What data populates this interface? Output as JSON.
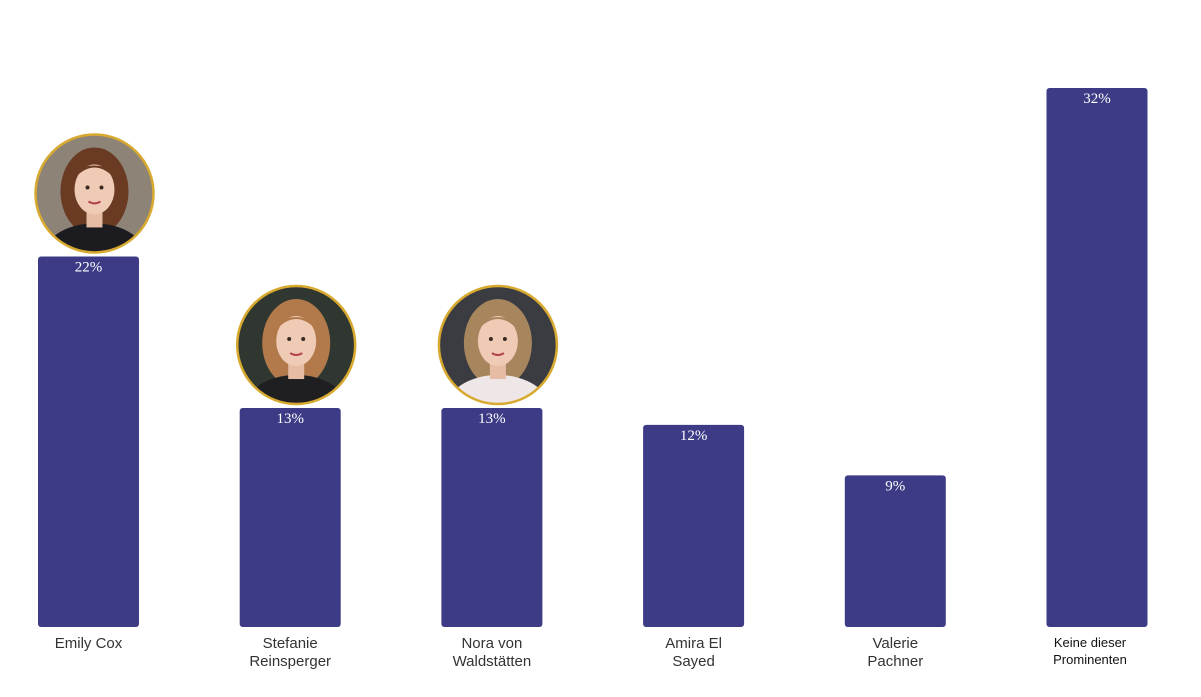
{
  "chart_data": {
    "type": "bar",
    "categories": [
      "Emily Cox",
      "Stefanie Reinsperger",
      "Nora von Waldstätten",
      "Amira El Sayed",
      "Valerie Pachner",
      "Keine dieser Prominenten"
    ],
    "category_lines": [
      [
        "Emily Cox"
      ],
      [
        "Stefanie",
        "Reinsperger"
      ],
      [
        "Nora von",
        "Waldstätten"
      ],
      [
        "Amira El",
        "Sayed"
      ],
      [
        "Valerie",
        "Pachner"
      ],
      [
        "Keine dieser",
        "Prominenten"
      ]
    ],
    "values": [
      22,
      13,
      13,
      12,
      9,
      32
    ],
    "value_labels": [
      "22%",
      "13%",
      "13%",
      "12%",
      "9%",
      "32%"
    ],
    "unit": "%",
    "ylim": [
      0,
      32
    ],
    "grid": false,
    "legend": "none",
    "bar_color": "#3d3b86",
    "photo_border_color": "#d8a92f",
    "photos": [
      {
        "category": "Emily Cox",
        "hair": "#6a3b22",
        "bg": "#8d8377",
        "cloth": "#1c1c20",
        "accent": "#b3202b"
      },
      {
        "category": "Stefanie Reinsperger",
        "hair": "#b2794a",
        "bg": "#2f3730",
        "cloth": "#1f1f22",
        "accent": "#1f1f22"
      },
      {
        "category": "Nora von Waldstätten",
        "hair": "#a7865e",
        "bg": "#3a3c42",
        "cloth": "#efe6e8",
        "accent": "#efe6e8"
      }
    ]
  }
}
